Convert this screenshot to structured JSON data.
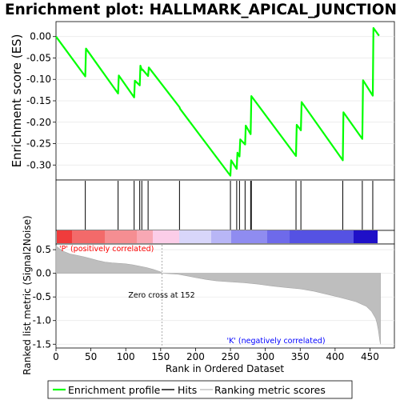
{
  "title": "Enrichment plot: HALLMARK_APICAL_JUNCTION",
  "colors": {
    "es_line": "#00ff00",
    "hits": "#000000",
    "metric_fill": "#bebebe",
    "pos_label": "#ff0000",
    "neg_label": "#0000ff"
  },
  "chart_data": [
    {
      "type": "line",
      "panel": "enrichment-score",
      "ylabel": "Enrichment score (ES)",
      "ylim": [
        -0.335,
        0.035
      ],
      "yticks": [
        0.0,
        -0.05,
        -0.1,
        -0.15,
        -0.2,
        -0.25,
        -0.3
      ],
      "ytick_labels": [
        "0.00",
        "-0.05",
        "-0.10",
        "-0.15",
        "-0.20",
        "-0.25",
        "-0.30"
      ],
      "xlim": [
        0,
        485
      ],
      "series": [
        {
          "x": [
            0,
            42,
            43,
            89,
            90,
            112,
            113,
            120,
            121,
            123,
            124,
            132,
            133,
            177,
            178,
            250,
            251,
            259,
            260,
            263,
            264,
            271,
            272,
            279,
            280,
            344,
            345,
            351,
            352,
            411,
            412,
            439,
            440,
            454,
            455,
            463
          ],
          "y": [
            0.0,
            -0.093,
            -0.028,
            -0.133,
            -0.091,
            -0.142,
            -0.103,
            -0.114,
            -0.068,
            -0.078,
            -0.077,
            -0.092,
            -0.072,
            -0.165,
            -0.169,
            -0.325,
            -0.289,
            -0.309,
            -0.271,
            -0.28,
            -0.24,
            -0.252,
            -0.208,
            -0.228,
            -0.139,
            -0.279,
            -0.206,
            -0.219,
            -0.153,
            -0.289,
            -0.177,
            -0.239,
            -0.102,
            -0.138,
            0.02,
            0.002
          ]
        }
      ]
    },
    {
      "type": "hits",
      "panel": "hits",
      "positions": [
        42,
        89,
        112,
        120,
        123,
        132,
        177,
        250,
        259,
        263,
        271,
        279,
        280,
        344,
        351,
        411,
        439,
        454
      ]
    },
    {
      "type": "area",
      "panel": "ranked-list-metric",
      "xlabel": "Rank in Ordered Dataset",
      "ylabel": "Ranked list metric (Signal2Noise)",
      "ylim": [
        -1.58,
        0.62
      ],
      "yticks": [
        0.5,
        0.0,
        -0.5,
        -1.0,
        -1.5
      ],
      "ytick_labels": [
        "0.5",
        "0.0",
        "-0.5",
        "-1.0",
        "-1.5"
      ],
      "xlim": [
        0,
        485
      ],
      "xticks": [
        0,
        50,
        100,
        150,
        200,
        250,
        300,
        350,
        400,
        450
      ],
      "xtick_labels": [
        "0",
        "50",
        "100",
        "150",
        "200",
        "250",
        "300",
        "350",
        "400",
        "450"
      ],
      "x": [
        0,
        5,
        10,
        15,
        20,
        30,
        40,
        50,
        60,
        70,
        80,
        100,
        110,
        120,
        130,
        140,
        150,
        152,
        175,
        190,
        200,
        215,
        230,
        250,
        270,
        290,
        310,
        330,
        350,
        370,
        390,
        410,
        430,
        445,
        452,
        458,
        460,
        462,
        464,
        465
      ],
      "values": [
        0.58,
        0.52,
        0.47,
        0.44,
        0.41,
        0.38,
        0.35,
        0.31,
        0.27,
        0.24,
        0.22,
        0.2,
        0.18,
        0.15,
        0.12,
        0.08,
        0.03,
        0.0,
        -0.02,
        -0.06,
        -0.09,
        -0.13,
        -0.16,
        -0.18,
        -0.2,
        -0.23,
        -0.27,
        -0.3,
        -0.33,
        -0.38,
        -0.45,
        -0.52,
        -0.6,
        -0.7,
        -0.8,
        -0.95,
        -1.05,
        -1.2,
        -1.42,
        -1.5
      ],
      "annotations": {
        "positive": "'P' (positively correlated)",
        "negative": "'K' (negatively correlated)",
        "zero_cross": "Zero cross at 152"
      },
      "zero_cross": 152
    }
  ],
  "legend": {
    "items": [
      {
        "label": "Enrichment profile",
        "color": "#00ff00"
      },
      {
        "label": "Hits",
        "color": "#000000"
      },
      {
        "label": "Ranking metric scores",
        "color": "#bebebe"
      }
    ]
  }
}
